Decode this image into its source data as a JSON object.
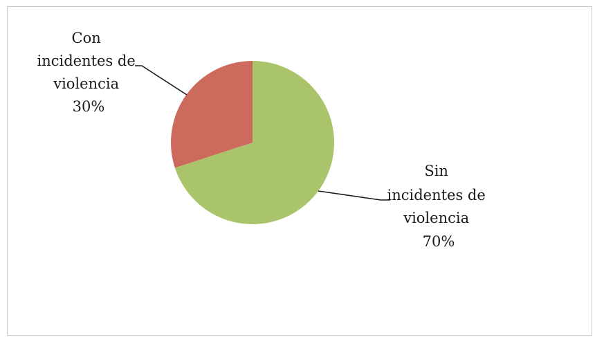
{
  "chart_data": {
    "type": "pie",
    "title": "",
    "slices": [
      {
        "label_lines": [
          "Sin",
          "incidentes de",
          "violencia"
        ],
        "pct_label": "70%",
        "value": 70,
        "color": "#a9c46b"
      },
      {
        "label_lines": [
          "Con",
          "incidentes de",
          "violencia"
        ],
        "pct_label": "30%",
        "value": 30,
        "color": "#cc6a5e"
      }
    ],
    "start_angle_deg": 0,
    "direction": "clockwise",
    "legend": "none"
  }
}
